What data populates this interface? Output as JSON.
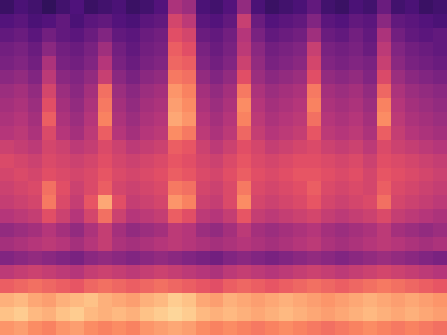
{
  "chart_data": {
    "type": "heatmap",
    "color": "magma",
    "tick_labels": false,
    "zlim": [
      0,
      100
    ],
    "cells": [
      [
        20,
        24,
        22,
        18,
        22,
        25,
        20,
        22,
        24,
        20,
        22,
        26,
        48,
        44,
        24,
        22,
        26,
        42,
        24,
        20,
        22,
        24,
        30,
        22,
        20,
        24,
        22,
        32,
        22,
        24,
        20,
        22
      ],
      [
        26,
        28,
        24,
        26,
        30,
        24,
        28,
        30,
        26,
        24,
        28,
        30,
        58,
        52,
        28,
        26,
        30,
        55,
        32,
        26,
        28,
        30,
        38,
        28,
        26,
        30,
        28,
        40,
        30,
        28,
        26,
        24
      ],
      [
        30,
        32,
        28,
        34,
        30,
        28,
        32,
        38,
        30,
        28,
        32,
        34,
        62,
        58,
        32,
        30,
        34,
        50,
        36,
        30,
        32,
        34,
        45,
        32,
        30,
        34,
        30,
        48,
        34,
        30,
        28,
        30
      ],
      [
        34,
        36,
        32,
        40,
        34,
        32,
        36,
        45,
        34,
        30,
        34,
        36,
        66,
        62,
        36,
        32,
        36,
        52,
        40,
        34,
        36,
        38,
        55,
        36,
        34,
        36,
        32,
        52,
        38,
        34,
        32,
        30
      ],
      [
        36,
        38,
        34,
        48,
        36,
        34,
        38,
        50,
        36,
        32,
        36,
        38,
        68,
        66,
        38,
        34,
        38,
        56,
        42,
        36,
        38,
        40,
        58,
        38,
        36,
        38,
        36,
        55,
        40,
        36,
        34,
        32
      ],
      [
        40,
        42,
        38,
        52,
        40,
        38,
        42,
        55,
        40,
        36,
        40,
        42,
        72,
        70,
        42,
        38,
        42,
        62,
        44,
        40,
        42,
        44,
        62,
        42,
        40,
        42,
        38,
        60,
        44,
        40,
        38,
        36
      ],
      [
        44,
        46,
        42,
        58,
        44,
        40,
        46,
        70,
        44,
        40,
        44,
        46,
        78,
        74,
        46,
        42,
        46,
        72,
        48,
        44,
        46,
        48,
        72,
        46,
        44,
        46,
        42,
        68,
        48,
        44,
        42,
        40
      ],
      [
        46,
        48,
        44,
        62,
        46,
        42,
        48,
        72,
        46,
        42,
        46,
        48,
        80,
        76,
        48,
        44,
        48,
        76,
        50,
        46,
        48,
        50,
        74,
        48,
        46,
        48,
        44,
        74,
        50,
        46,
        44,
        42
      ],
      [
        48,
        50,
        46,
        66,
        48,
        44,
        50,
        74,
        48,
        44,
        48,
        50,
        82,
        78,
        50,
        46,
        50,
        74,
        52,
        48,
        50,
        52,
        70,
        50,
        48,
        50,
        46,
        76,
        52,
        48,
        46,
        44
      ],
      [
        50,
        52,
        48,
        60,
        50,
        46,
        52,
        66,
        50,
        46,
        50,
        52,
        76,
        72,
        52,
        48,
        52,
        68,
        54,
        50,
        52,
        54,
        64,
        52,
        50,
        52,
        48,
        66,
        54,
        50,
        48,
        46
      ],
      [
        56,
        54,
        52,
        58,
        56,
        52,
        54,
        60,
        56,
        52,
        54,
        56,
        66,
        64,
        56,
        52,
        56,
        62,
        58,
        54,
        56,
        58,
        60,
        56,
        54,
        56,
        52,
        60,
        56,
        54,
        52,
        50
      ],
      [
        60,
        58,
        56,
        60,
        58,
        56,
        58,
        62,
        58,
        56,
        58,
        60,
        64,
        62,
        58,
        56,
        60,
        64,
        60,
        58,
        60,
        62,
        62,
        60,
        58,
        60,
        56,
        62,
        60,
        58,
        56,
        54
      ],
      [
        58,
        60,
        58,
        62,
        60,
        58,
        60,
        64,
        60,
        58,
        60,
        62,
        66,
        64,
        60,
        58,
        62,
        66,
        62,
        60,
        62,
        64,
        64,
        62,
        60,
        62,
        58,
        64,
        62,
        60,
        58,
        56
      ],
      [
        56,
        58,
        60,
        70,
        62,
        56,
        60,
        66,
        58,
        56,
        58,
        60,
        72,
        70,
        58,
        56,
        60,
        72,
        60,
        58,
        60,
        62,
        66,
        60,
        58,
        60,
        58,
        66,
        60,
        58,
        56,
        54
      ],
      [
        54,
        56,
        58,
        72,
        60,
        54,
        64,
        82,
        62,
        54,
        56,
        58,
        78,
        74,
        56,
        54,
        60,
        76,
        58,
        56,
        58,
        60,
        64,
        58,
        56,
        58,
        60,
        70,
        58,
        56,
        54,
        52
      ],
      [
        50,
        52,
        54,
        62,
        56,
        50,
        58,
        70,
        56,
        50,
        52,
        54,
        66,
        62,
        52,
        50,
        54,
        64,
        54,
        52,
        54,
        56,
        58,
        54,
        52,
        54,
        56,
        60,
        54,
        52,
        50,
        48
      ],
      [
        42,
        44,
        46,
        50,
        46,
        42,
        48,
        54,
        46,
        42,
        44,
        46,
        52,
        50,
        44,
        42,
        46,
        52,
        46,
        44,
        46,
        48,
        50,
        46,
        44,
        46,
        48,
        52,
        46,
        44,
        42,
        44
      ],
      [
        46,
        48,
        50,
        52,
        50,
        46,
        50,
        54,
        48,
        46,
        48,
        50,
        52,
        50,
        48,
        46,
        48,
        50,
        48,
        46,
        48,
        50,
        52,
        48,
        46,
        48,
        50,
        52,
        50,
        48,
        46,
        48
      ],
      [
        38,
        40,
        42,
        40,
        38,
        36,
        40,
        42,
        40,
        38,
        40,
        42,
        40,
        38,
        36,
        34,
        38,
        40,
        38,
        36,
        38,
        40,
        42,
        40,
        38,
        40,
        42,
        44,
        42,
        40,
        38,
        36
      ],
      [
        52,
        54,
        56,
        54,
        52,
        50,
        54,
        56,
        54,
        52,
        54,
        56,
        54,
        52,
        50,
        48,
        52,
        54,
        52,
        50,
        52,
        54,
        56,
        54,
        52,
        54,
        56,
        58,
        56,
        54,
        52,
        50
      ],
      [
        66,
        68,
        70,
        68,
        66,
        64,
        68,
        70,
        68,
        66,
        68,
        70,
        68,
        66,
        64,
        62,
        66,
        68,
        66,
        64,
        66,
        68,
        70,
        68,
        66,
        68,
        70,
        72,
        70,
        68,
        66,
        64
      ],
      [
        84,
        86,
        82,
        80,
        84,
        86,
        88,
        84,
        82,
        80,
        84,
        86,
        90,
        88,
        82,
        80,
        84,
        82,
        80,
        82,
        84,
        82,
        80,
        78,
        80,
        82,
        84,
        82,
        80,
        82,
        80,
        78
      ],
      [
        88,
        90,
        86,
        84,
        88,
        90,
        86,
        84,
        86,
        84,
        88,
        90,
        92,
        90,
        86,
        84,
        86,
        84,
        82,
        84,
        86,
        84,
        82,
        80,
        82,
        84,
        86,
        84,
        82,
        84,
        82,
        80
      ],
      [
        78,
        80,
        76,
        74,
        78,
        80,
        76,
        74,
        76,
        74,
        78,
        80,
        82,
        80,
        76,
        74,
        76,
        74,
        72,
        74,
        76,
        74,
        72,
        70,
        72,
        74,
        76,
        74,
        72,
        74,
        72,
        70
      ]
    ]
  }
}
